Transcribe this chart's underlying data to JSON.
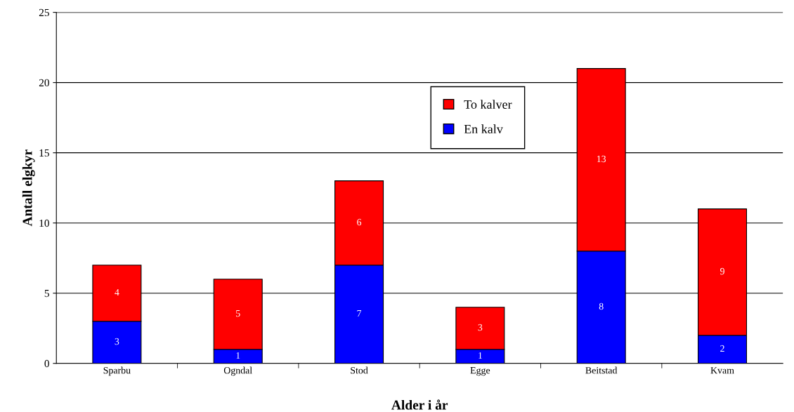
{
  "chart_data": {
    "type": "bar",
    "stacked": true,
    "xlabel": "Alder i år",
    "ylabel": "Antall elgkyr",
    "categories": [
      "Sparbu",
      "Ogndal",
      "Stod",
      "Egge",
      "Beitstad",
      "Kvam"
    ],
    "series": [
      {
        "name": "En kalv",
        "color": "#0000ff",
        "values": [
          3,
          1,
          7,
          1,
          8,
          2
        ]
      },
      {
        "name": "To kalver",
        "color": "#ff0000",
        "values": [
          4,
          5,
          6,
          3,
          13,
          9
        ]
      }
    ],
    "ylim": [
      0,
      25
    ],
    "yticks": [
      0,
      5,
      10,
      15,
      20,
      25
    ],
    "grid": "y",
    "legend": "center",
    "data_labels": true
  }
}
